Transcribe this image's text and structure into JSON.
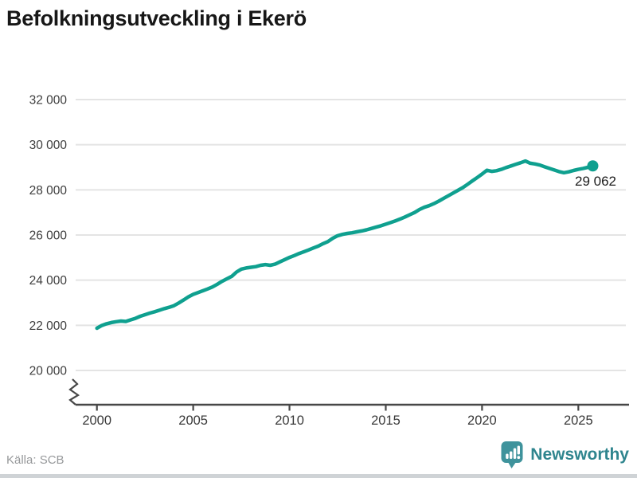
{
  "title": "Befolkningsutveckling i Ekerö",
  "footer": {
    "source_label": "Källa: SCB",
    "brand": "Newsworthy"
  },
  "colors": {
    "background": "#ffffff",
    "line": "#0fa08f",
    "end_dot": "#0fa08f",
    "grid": "#e4e4e4",
    "axis": "#474747",
    "title": "#171717",
    "tick_label": "#3d3d3d",
    "annotation": "#1c1c1c",
    "source_text": "#97999b",
    "brand_icon": "#3f939c",
    "brand_icon_glyph": "#ffffff",
    "brand_text": "#2f858e",
    "bottom_bar": "#cfd3d6"
  },
  "chart_data": {
    "type": "line",
    "title": "Befolkningsutveckling i Ekerö",
    "xlabel": "",
    "ylabel": "",
    "grid": "horizontal",
    "legend_position": "none",
    "axis_break": true,
    "xlim": [
      1998.9,
      2027.4
    ],
    "ylim": [
      19500,
      32500
    ],
    "x_ticks": [
      2000,
      2005,
      2010,
      2015,
      2020,
      2025
    ],
    "x_tick_labels": [
      "2000",
      "2005",
      "2010",
      "2015",
      "2020",
      "2025"
    ],
    "y_ticks": [
      32000,
      30000,
      28000,
      26000,
      24000,
      22000,
      20000
    ],
    "y_tick_labels": [
      "32 000",
      "30 000",
      "28 000",
      "26 000",
      "24 000",
      "22 000",
      "20 000"
    ],
    "end_label": "29 062",
    "end_value": 29062,
    "series": [
      {
        "name": "Befolkning i Ekerö",
        "points": [
          [
            2000.0,
            21870
          ],
          [
            2000.25,
            21990
          ],
          [
            2000.5,
            22070
          ],
          [
            2000.75,
            22120
          ],
          [
            2001.0,
            22160
          ],
          [
            2001.25,
            22190
          ],
          [
            2001.5,
            22170
          ],
          [
            2001.75,
            22240
          ],
          [
            2002.0,
            22310
          ],
          [
            2002.25,
            22400
          ],
          [
            2002.5,
            22470
          ],
          [
            2002.75,
            22540
          ],
          [
            2003.0,
            22600
          ],
          [
            2003.25,
            22670
          ],
          [
            2003.5,
            22740
          ],
          [
            2003.75,
            22800
          ],
          [
            2004.0,
            22870
          ],
          [
            2004.25,
            22990
          ],
          [
            2004.5,
            23120
          ],
          [
            2004.75,
            23260
          ],
          [
            2005.0,
            23370
          ],
          [
            2005.25,
            23450
          ],
          [
            2005.5,
            23530
          ],
          [
            2005.75,
            23610
          ],
          [
            2006.0,
            23700
          ],
          [
            2006.25,
            23820
          ],
          [
            2006.5,
            23950
          ],
          [
            2006.75,
            24060
          ],
          [
            2007.0,
            24170
          ],
          [
            2007.25,
            24360
          ],
          [
            2007.5,
            24490
          ],
          [
            2007.75,
            24540
          ],
          [
            2008.0,
            24570
          ],
          [
            2008.25,
            24600
          ],
          [
            2008.5,
            24660
          ],
          [
            2008.75,
            24690
          ],
          [
            2009.0,
            24660
          ],
          [
            2009.25,
            24710
          ],
          [
            2009.5,
            24810
          ],
          [
            2009.75,
            24910
          ],
          [
            2010.0,
            25010
          ],
          [
            2010.25,
            25090
          ],
          [
            2010.5,
            25180
          ],
          [
            2010.75,
            25260
          ],
          [
            2011.0,
            25340
          ],
          [
            2011.25,
            25430
          ],
          [
            2011.5,
            25510
          ],
          [
            2011.75,
            25620
          ],
          [
            2012.0,
            25710
          ],
          [
            2012.25,
            25860
          ],
          [
            2012.5,
            25970
          ],
          [
            2012.75,
            26030
          ],
          [
            2013.0,
            26070
          ],
          [
            2013.25,
            26100
          ],
          [
            2013.5,
            26140
          ],
          [
            2013.75,
            26180
          ],
          [
            2014.0,
            26230
          ],
          [
            2014.25,
            26290
          ],
          [
            2014.5,
            26350
          ],
          [
            2014.75,
            26410
          ],
          [
            2015.0,
            26480
          ],
          [
            2015.25,
            26550
          ],
          [
            2015.5,
            26630
          ],
          [
            2015.75,
            26710
          ],
          [
            2016.0,
            26800
          ],
          [
            2016.25,
            26900
          ],
          [
            2016.5,
            27000
          ],
          [
            2016.75,
            27130
          ],
          [
            2017.0,
            27230
          ],
          [
            2017.25,
            27300
          ],
          [
            2017.5,
            27390
          ],
          [
            2017.75,
            27500
          ],
          [
            2018.0,
            27620
          ],
          [
            2018.25,
            27740
          ],
          [
            2018.5,
            27860
          ],
          [
            2018.75,
            27980
          ],
          [
            2019.0,
            28100
          ],
          [
            2019.25,
            28250
          ],
          [
            2019.5,
            28400
          ],
          [
            2019.75,
            28550
          ],
          [
            2020.0,
            28700
          ],
          [
            2020.25,
            28870
          ],
          [
            2020.5,
            28820
          ],
          [
            2020.75,
            28850
          ],
          [
            2021.0,
            28910
          ],
          [
            2021.25,
            28990
          ],
          [
            2021.5,
            29060
          ],
          [
            2021.75,
            29130
          ],
          [
            2022.0,
            29200
          ],
          [
            2022.25,
            29280
          ],
          [
            2022.5,
            29180
          ],
          [
            2022.75,
            29150
          ],
          [
            2023.0,
            29100
          ],
          [
            2023.25,
            29020
          ],
          [
            2023.5,
            28950
          ],
          [
            2023.75,
            28880
          ],
          [
            2024.0,
            28810
          ],
          [
            2024.25,
            28760
          ],
          [
            2024.5,
            28800
          ],
          [
            2024.75,
            28860
          ],
          [
            2025.0,
            28910
          ],
          [
            2025.25,
            28950
          ],
          [
            2025.5,
            29000
          ],
          [
            2025.75,
            29062
          ]
        ]
      }
    ]
  }
}
